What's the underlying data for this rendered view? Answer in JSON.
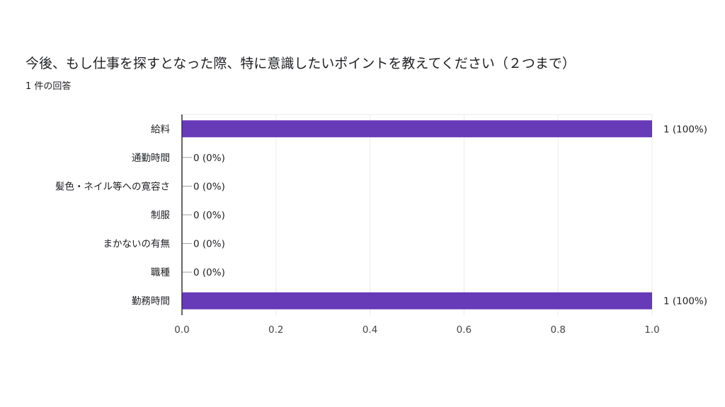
{
  "title": "今後、もし仕事を探すとなった際、特に意識したいポイントを教えてください（２つまで）",
  "subtitle": "1 件の回答",
  "colors": {
    "bar": "#673ab7",
    "grid": "#ebebeb",
    "axis": "#333333"
  },
  "chart_data": {
    "type": "bar",
    "orientation": "horizontal",
    "title": "今後、もし仕事を探すとなった際、特に意識したいポイントを教えてください（２つまで）",
    "categories": [
      "給料",
      "通勤時間",
      "髪色・ネイル等への寛容さ",
      "制服",
      "まかないの有無",
      "職種",
      "勤務時間"
    ],
    "values": [
      1,
      0,
      0,
      0,
      0,
      0,
      1
    ],
    "data_labels": [
      "1 (100%)",
      "0 (0%)",
      "0 (0%)",
      "0 (0%)",
      "0 (0%)",
      "0 (0%)",
      "1 (100%)"
    ],
    "xlim": [
      0,
      1.0
    ],
    "xticks": [
      "0.0",
      "0.2",
      "0.4",
      "0.6",
      "0.8",
      "1.0"
    ],
    "grid": true,
    "xlabel": "",
    "ylabel": ""
  }
}
